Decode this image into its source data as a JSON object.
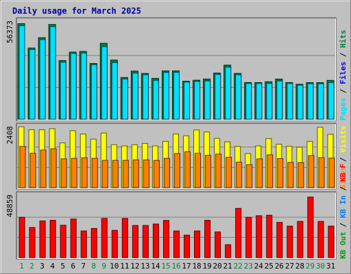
{
  "chart_data": {
    "type": "bar",
    "title": "Daily usage for March 2025",
    "categories": [
      "1",
      "2",
      "3",
      "4",
      "5",
      "6",
      "7",
      "8",
      "9",
      "10",
      "11",
      "12",
      "13",
      "14",
      "15",
      "16",
      "17",
      "18",
      "19",
      "20",
      "21",
      "22",
      "23",
      "24",
      "25",
      "26",
      "27",
      "28",
      "29",
      "30",
      "31"
    ],
    "weekend_days": [
      "1",
      "2",
      "8",
      "9",
      "15",
      "16",
      "22",
      "23",
      "29",
      "30"
    ],
    "panels": [
      {
        "id": "hits",
        "scale_max_label": "56373",
        "ylim": [
          0,
          59000
        ],
        "series": [
          {
            "name": "Hits",
            "color": "#008040",
            "values": [
              56373,
              42000,
              48100,
              55900,
              34600,
              39600,
              40000,
              32900,
              44800,
              34900,
              24600,
              28400,
              27000,
              24100,
              28500,
              28500,
              22400,
              23000,
              23700,
              27200,
              31900,
              27000,
              21600,
              21600,
              22100,
              23700,
              21600,
              20600,
              21600,
              21600,
              22900
            ]
          },
          {
            "name": "Files",
            "color": "#0000ff",
            "values": [
              55100,
              41100,
              46900,
              54600,
              33600,
              38800,
              39000,
              32100,
              42800,
              33400,
              23700,
              27200,
              26200,
              22900,
              27600,
              27600,
              21900,
              22300,
              22500,
              26400,
              30700,
              26200,
              21100,
              21100,
              21100,
              22500,
              21100,
              20100,
              20900,
              20900,
              21600
            ]
          },
          {
            "name": "Pages",
            "color": "#00e0ff",
            "values": [
              55100,
              41100,
              46900,
              54600,
              33600,
              38800,
              39000,
              32100,
              42800,
              33400,
              23700,
              27200,
              26200,
              22900,
              27600,
              27600,
              21900,
              22300,
              22500,
              26400,
              30700,
              26200,
              21100,
              21100,
              21100,
              22500,
              21100,
              20100,
              20900,
              20900,
              21600
            ]
          }
        ]
      },
      {
        "id": "visits",
        "scale_max_label": "2408",
        "ylim": [
          0,
          2490
        ],
        "series": [
          {
            "name": "Visits",
            "color": "#ffff00",
            "values": [
              2408,
              2290,
              2290,
              2330,
              1770,
              2250,
              2120,
              1920,
              2160,
              1700,
              1650,
              1700,
              1750,
              1650,
              1830,
              2120,
              2050,
              2280,
              2200,
              1950,
              1810,
              1630,
              1350,
              1650,
              1940,
              1720,
              1640,
              1600,
              1830,
              2390,
              2110
            ]
          },
          {
            "name": "Sites",
            "color": "#ff8000",
            "values": [
              1630,
              1360,
              1490,
              1540,
              1140,
              1160,
              1180,
              1160,
              1080,
              1080,
              1080,
              1100,
              1100,
              1080,
              1160,
              1350,
              1420,
              1360,
              1280,
              1330,
              1200,
              1010,
              910,
              1140,
              1300,
              1150,
              1000,
              990,
              1270,
              1190,
              1170
            ]
          }
        ]
      },
      {
        "id": "kbytes",
        "scale_max_label": "48859",
        "ylim": [
          0,
          52000
        ],
        "series": [
          {
            "name": "KB F",
            "color": "#ff0000",
            "values": [
              32500,
              24300,
              29600,
              30100,
              26100,
              31100,
              21500,
              23500,
              31600,
              22000,
              31600,
              25900,
              25900,
              27100,
              30000,
              21500,
              18100,
              21500,
              30100,
              20700,
              10400,
              39700,
              32500,
              33800,
              34200,
              28400,
              25400,
              29200,
              48859,
              29200,
              25400
            ]
          },
          {
            "name": "KB In",
            "color": "#0080ff",
            "values": []
          },
          {
            "name": "KB Out",
            "color": "#00a000",
            "values": []
          }
        ]
      }
    ],
    "legend_placement": "right, rotated vertical"
  }
}
